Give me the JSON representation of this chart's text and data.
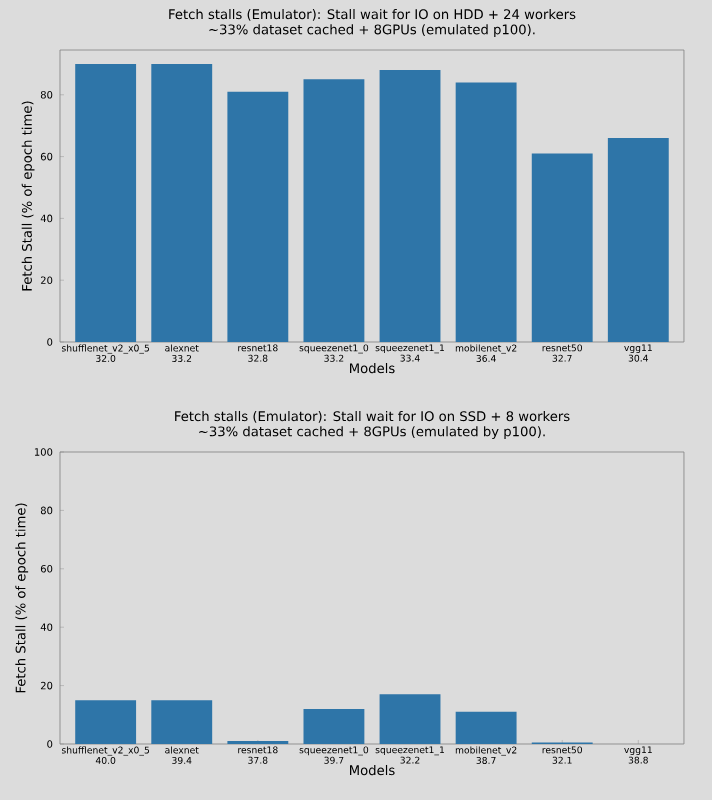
{
  "chart_data": [
    {
      "type": "bar",
      "title": "Fetch stalls (Emulator): Stall wait for IO on HDD + 24 workers",
      "subtitle": "~33% dataset cached + 8GPUs (emulated p100).",
      "xlabel": "Models",
      "ylabel": "Fetch Stall (% of epoch time)",
      "categories": [
        "shufflenet_v2_x0_5",
        "alexnet",
        "resnet18",
        "squeezenet1_0",
        "squeezenet1_1",
        "mobilenet_v2",
        "resnet50",
        "vgg11"
      ],
      "annotations": [
        "32.0",
        "33.2",
        "32.8",
        "33.2",
        "33.4",
        "36.4",
        "32.7",
        "30.4"
      ],
      "values": [
        90,
        90,
        81,
        85,
        88,
        84,
        61,
        66
      ],
      "color": "#2e75a8",
      "ylim": [
        0,
        94.5
      ],
      "yticks": [
        0,
        20,
        40,
        60,
        80
      ]
    },
    {
      "type": "bar",
      "title": "Fetch stalls (Emulator): Stall wait for IO on SSD + 8 workers",
      "subtitle": "~33% dataset cached + 8GPUs (emulated by p100).",
      "xlabel": "Models",
      "ylabel": "Fetch Stall (% of epoch time)",
      "categories": [
        "shufflenet_v2_x0_5",
        "alexnet",
        "resnet18",
        "squeezenet1_0",
        "squeezenet1_1",
        "mobilenet_v2",
        "resnet50",
        "vgg11"
      ],
      "annotations": [
        "40.0",
        "39.4",
        "37.8",
        "39.7",
        "32.2",
        "38.7",
        "32.1",
        "38.8"
      ],
      "values": [
        15,
        15,
        1,
        12,
        17,
        11,
        0.5,
        0
      ],
      "color": "#2e75a8",
      "ylim": [
        0,
        100
      ],
      "yticks": [
        0,
        20,
        40,
        60,
        80,
        100
      ]
    }
  ]
}
